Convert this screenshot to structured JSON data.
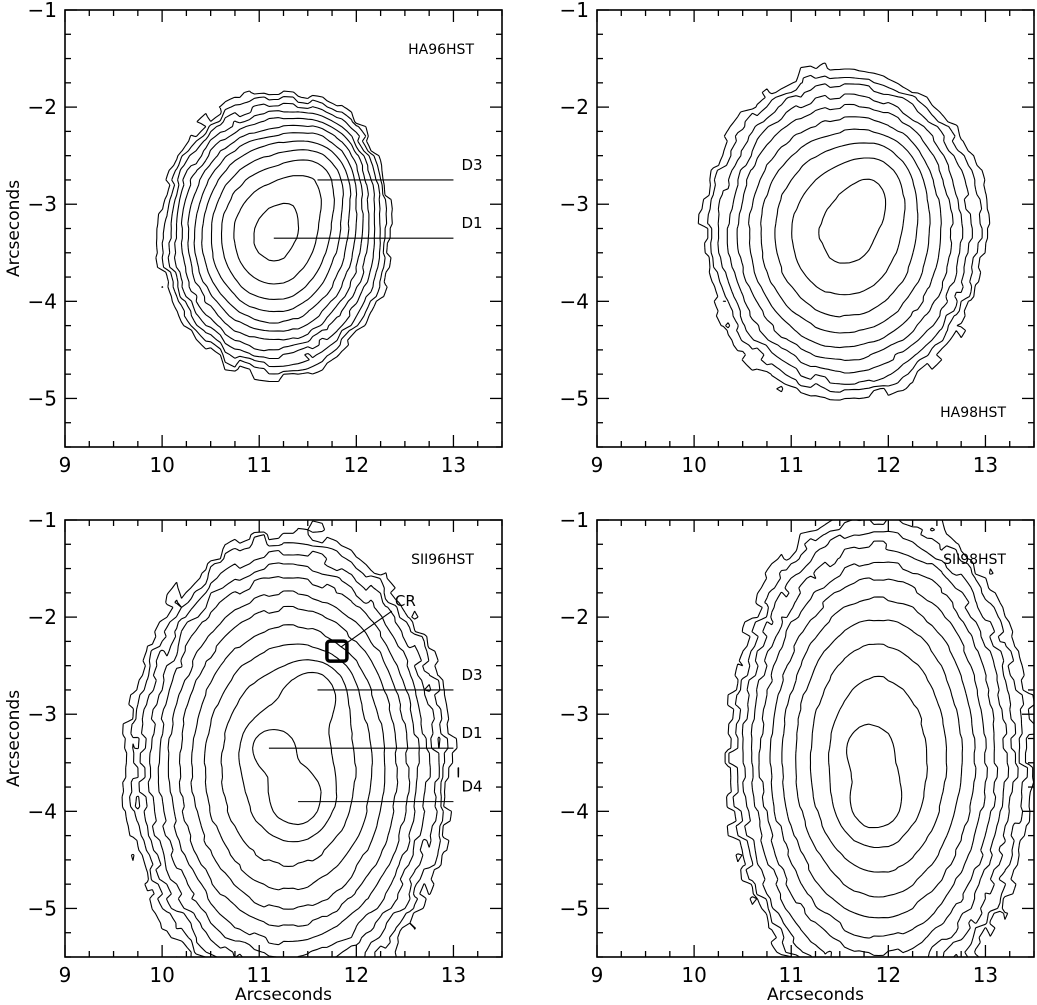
{
  "figure": {
    "panels": [
      {
        "id": "ha96",
        "title": "HA96HST",
        "title_pos": "top-right",
        "show_xlabel": false,
        "show_ylabel": true
      },
      {
        "id": "ha98",
        "title": "HA98HST",
        "title_pos": "bottom-right",
        "show_xlabel": false,
        "show_ylabel": false
      },
      {
        "id": "sii96",
        "title": "SII96HST",
        "title_pos": "top-right",
        "show_xlabel": true,
        "show_ylabel": true
      },
      {
        "id": "sii98",
        "title": "SII98HST",
        "title_pos": "top-right",
        "show_xlabel": true,
        "show_ylabel": false
      }
    ]
  },
  "chart_data": [
    {
      "type": "contour",
      "title": "HA96HST",
      "xlabel": "",
      "ylabel": "Arcseconds",
      "xlim": [
        9,
        13.5
      ],
      "ylim": [
        -5.5,
        -1
      ],
      "xticks": [
        9,
        10,
        11,
        12,
        13
      ],
      "yticks": [
        -1,
        -2,
        -3,
        -4,
        -5
      ],
      "contour_levels": 12,
      "peaks": [
        {
          "x": 11.15,
          "y": -3.32,
          "sx": 0.45,
          "sy": 0.55,
          "amp": 1.0
        },
        {
          "x": 11.6,
          "y": -2.75,
          "sx": 0.25,
          "sy": 0.3,
          "amp": 0.28
        }
      ],
      "annotations": [
        {
          "label": "D3",
          "x": 11.6,
          "y": -2.75,
          "line_to_x": 13.0
        },
        {
          "label": "D1",
          "x": 11.15,
          "y": -3.35,
          "line_to_x": 13.0
        }
      ]
    },
    {
      "type": "contour",
      "title": "HA98HST",
      "xlabel": "",
      "ylabel": "",
      "xlim": [
        9,
        13.5
      ],
      "ylim": [
        -5.5,
        -1
      ],
      "xticks": [
        9,
        10,
        11,
        12,
        13
      ],
      "yticks": [
        -1,
        -2,
        -3,
        -4,
        -5
      ],
      "contour_levels": 10,
      "peaks": [
        {
          "x": 11.55,
          "y": -3.3,
          "sx": 0.55,
          "sy": 0.65,
          "amp": 1.0
        },
        {
          "x": 11.9,
          "y": -2.8,
          "sx": 0.25,
          "sy": 0.3,
          "amp": 0.3
        }
      ],
      "annotations": []
    },
    {
      "type": "contour",
      "title": "SII96HST",
      "xlabel": "Arcseconds",
      "ylabel": "Arcseconds",
      "xlim": [
        9,
        13.5
      ],
      "ylim": [
        -5.5,
        -1
      ],
      "xticks": [
        9,
        10,
        11,
        12,
        13
      ],
      "yticks": [
        -1,
        -2,
        -3,
        -4,
        -5
      ],
      "contour_levels": 12,
      "peaks": [
        {
          "x": 11.3,
          "y": -3.55,
          "sx": 0.65,
          "sy": 0.95,
          "amp": 0.85
        },
        {
          "x": 11.1,
          "y": -3.35,
          "sx": 0.15,
          "sy": 0.15,
          "amp": 0.35
        },
        {
          "x": 11.4,
          "y": -3.9,
          "sx": 0.2,
          "sy": 0.2,
          "amp": 0.4
        },
        {
          "x": 11.6,
          "y": -2.75,
          "sx": 0.2,
          "sy": 0.2,
          "amp": 0.3
        }
      ],
      "annotations": [
        {
          "label": "CR",
          "x": 11.8,
          "y": -2.35,
          "line_to_x": null
        },
        {
          "label": "D3",
          "x": 11.6,
          "y": -2.75,
          "line_to_x": 13.0
        },
        {
          "label": "D1",
          "x": 11.1,
          "y": -3.35,
          "line_to_x": 13.0
        },
        {
          "label": "D4",
          "x": 11.4,
          "y": -3.9,
          "line_to_x": 13.0
        }
      ]
    },
    {
      "type": "contour",
      "title": "SII98HST",
      "xlabel": "Arcseconds",
      "ylabel": "",
      "xlim": [
        9,
        13.5
      ],
      "ylim": [
        -5.5,
        -1
      ],
      "xticks": [
        9,
        10,
        11,
        12,
        13
      ],
      "yticks": [
        -1,
        -2,
        -3,
        -4,
        -5
      ],
      "contour_levels": 11,
      "peaks": [
        {
          "x": 11.9,
          "y": -3.45,
          "sx": 0.6,
          "sy": 1.0,
          "amp": 0.9
        },
        {
          "x": 11.85,
          "y": -3.95,
          "sx": 0.22,
          "sy": 0.22,
          "amp": 0.35
        },
        {
          "x": 11.75,
          "y": -3.35,
          "sx": 0.15,
          "sy": 0.15,
          "amp": 0.25
        }
      ],
      "annotations": []
    }
  ]
}
